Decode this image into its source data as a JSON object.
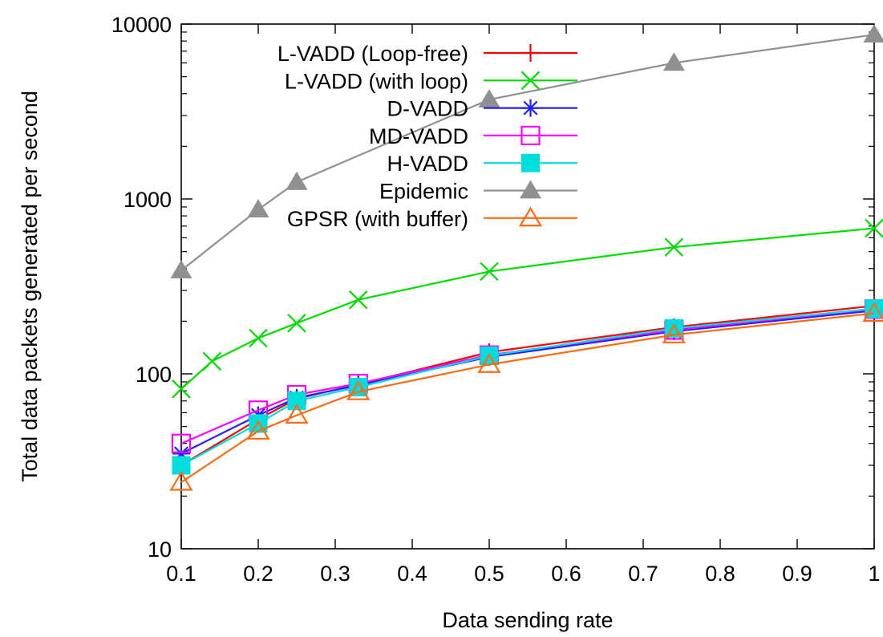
{
  "chart_data": {
    "type": "line",
    "title": "",
    "xlabel": "Data sending rate",
    "ylabel": "Total data packets generated per second",
    "xlim": [
      0.1,
      1.0
    ],
    "ylim": [
      10,
      10000
    ],
    "yscale": "log",
    "grid": false,
    "legend_position": "top-left",
    "x_ticks": [
      0.1,
      0.2,
      0.3,
      0.4,
      0.5,
      0.6,
      0.7,
      0.8,
      0.9,
      1.0
    ],
    "x_tick_labels": [
      "0.1",
      "0.2",
      "0.3",
      "0.4",
      "0.5",
      "0.6",
      "0.7",
      "0.8",
      "0.9",
      "1"
    ],
    "y_ticks": [
      10,
      100,
      1000,
      10000
    ],
    "y_tick_labels": [
      "10",
      "100",
      "1000",
      "10000"
    ],
    "series": [
      {
        "name": "L-VADD (Loop-free)",
        "color": "#ff0000",
        "marker": "plus",
        "x": [
          0.1,
          0.2,
          0.25,
          0.33,
          0.5,
          0.74,
          1.0
        ],
        "y": [
          30,
          55,
          72,
          87,
          133,
          185,
          245
        ]
      },
      {
        "name": "L-VADD (with loop)",
        "color": "#00dd00",
        "marker": "x",
        "x": [
          0.1,
          0.14,
          0.2,
          0.25,
          0.33,
          0.5,
          0.74,
          1.0
        ],
        "y": [
          82,
          118,
          160,
          195,
          265,
          385,
          530,
          680
        ]
      },
      {
        "name": "D-VADD",
        "color": "#2020ff",
        "marker": "asterisk",
        "x": [
          0.1,
          0.2,
          0.25,
          0.33,
          0.5,
          0.74,
          1.0
        ],
        "y": [
          35,
          58,
          73,
          86,
          125,
          175,
          230
        ]
      },
      {
        "name": "MD-VADD",
        "color": "#ff00ff",
        "marker": "open-square",
        "x": [
          0.1,
          0.2,
          0.25,
          0.33,
          0.5,
          0.74,
          1.0
        ],
        "y": [
          40,
          62,
          76,
          88,
          128,
          178,
          235
        ]
      },
      {
        "name": "H-VADD",
        "color": "#00dddd",
        "marker": "filled-square",
        "x": [
          0.1,
          0.2,
          0.25,
          0.33,
          0.5,
          0.74,
          1.0
        ],
        "y": [
          30,
          52,
          70,
          84,
          127,
          182,
          236
        ]
      },
      {
        "name": "Epidemic",
        "color": "#909090",
        "marker": "filled-triangle",
        "x": [
          0.1,
          0.2,
          0.25,
          0.5,
          0.74,
          1.0
        ],
        "y": [
          390,
          870,
          1250,
          3700,
          6000,
          8700
        ]
      },
      {
        "name": "GPSR (with buffer)",
        "color": "#ff6a10",
        "marker": "open-triangle",
        "x": [
          0.1,
          0.2,
          0.25,
          0.33,
          0.5,
          0.74,
          1.0
        ],
        "y": [
          24,
          47,
          58,
          79,
          113,
          167,
          222
        ]
      }
    ]
  }
}
